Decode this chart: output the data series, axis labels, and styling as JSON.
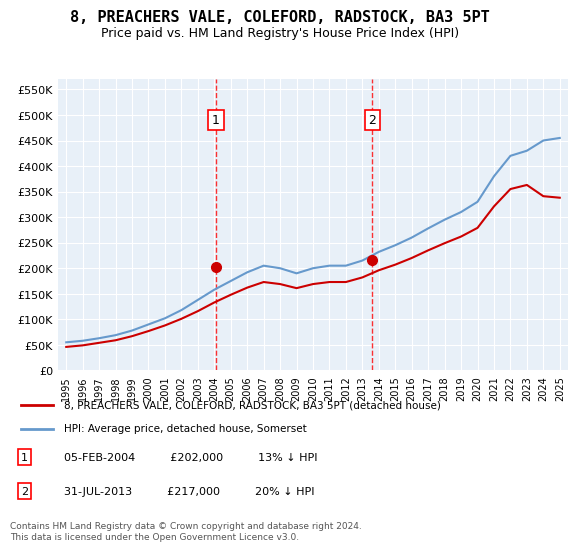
{
  "title": "8, PREACHERS VALE, COLEFORD, RADSTOCK, BA3 5PT",
  "subtitle": "Price paid vs. HM Land Registry's House Price Index (HPI)",
  "legend_line1": "8, PREACHERS VALE, COLEFORD, RADSTOCK, BA3 5PT (detached house)",
  "legend_line2": "HPI: Average price, detached house, Somerset",
  "footnote": "Contains HM Land Registry data © Crown copyright and database right 2024.\nThis data is licensed under the Open Government Licence v3.0.",
  "hpi_color": "#6699cc",
  "price_color": "#cc0000",
  "background_color": "#e8f0f8",
  "sale1": {
    "date": "2004-02-05",
    "price": 202000,
    "label": "1"
  },
  "sale2": {
    "date": "2013-07-31",
    "price": 217000,
    "label": "2"
  },
  "sale1_text": "05-FEB-2004    £202,000    13% ↓ HPI",
  "sale2_text": "31-JUL-2013    £217,000    20% ↓ HPI",
  "ylim": [
    0,
    570000
  ],
  "yticks": [
    0,
    50000,
    100000,
    150000,
    200000,
    250000,
    300000,
    350000,
    400000,
    450000,
    500000,
    550000
  ],
  "ytick_labels": [
    "£0",
    "£50K",
    "£100K",
    "£150K",
    "£200K",
    "£250K",
    "£300K",
    "£350K",
    "£400K",
    "£450K",
    "£500K",
    "£550K"
  ],
  "hpi_years": [
    1995,
    1996,
    1997,
    1998,
    1999,
    2000,
    2001,
    2002,
    2003,
    2004,
    2005,
    2006,
    2007,
    2008,
    2009,
    2010,
    2011,
    2012,
    2013,
    2014,
    2015,
    2016,
    2017,
    2018,
    2019,
    2020,
    2021,
    2022,
    2023,
    2024,
    2025
  ],
  "hpi_values": [
    55000,
    58000,
    63000,
    69000,
    78000,
    90000,
    102000,
    118000,
    138000,
    158000,
    175000,
    192000,
    205000,
    200000,
    190000,
    200000,
    205000,
    205000,
    215000,
    232000,
    245000,
    260000,
    278000,
    295000,
    310000,
    330000,
    380000,
    420000,
    430000,
    450000,
    455000
  ],
  "price_years": [
    1995,
    1996,
    1997,
    1998,
    1999,
    2000,
    2001,
    2002,
    2003,
    2004,
    2005,
    2006,
    2007,
    2008,
    2009,
    2010,
    2011,
    2012,
    2013,
    2014,
    2015,
    2016,
    2017,
    2018,
    2019,
    2020,
    2021,
    2022,
    2023,
    2024,
    2025
  ],
  "price_values": [
    46000,
    49000,
    54000,
    59000,
    67000,
    77000,
    88000,
    101000,
    116000,
    133000,
    148000,
    162000,
    173000,
    169000,
    161000,
    169000,
    173000,
    173000,
    182000,
    196000,
    207000,
    220000,
    235000,
    249000,
    262000,
    279000,
    321000,
    355000,
    363000,
    341000,
    338000
  ],
  "xtick_years": [
    1995,
    1996,
    1997,
    1998,
    1999,
    2000,
    2001,
    2002,
    2003,
    2004,
    2005,
    2006,
    2007,
    2008,
    2009,
    2010,
    2011,
    2012,
    2013,
    2014,
    2015,
    2016,
    2017,
    2018,
    2019,
    2020,
    2021,
    2022,
    2023,
    2024,
    2025
  ]
}
